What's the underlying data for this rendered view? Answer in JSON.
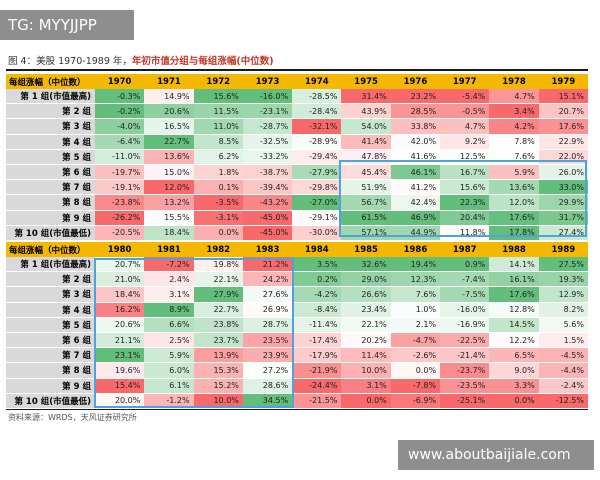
{
  "watermark_top": "TG: MYYJJPP",
  "figure_label": "图 4：美股 1970-1989 年，",
  "figure_title": "年初市值分组与每组涨幅(中位数)",
  "header_label": "每组涨幅（中位数）",
  "group_labels": [
    "第 1 组(市值最高)",
    "第 2 组",
    "第 3 组",
    "第 4 组",
    "第 5 组",
    "第 6 组",
    "第 7 组",
    "第 8 组",
    "第 9 组",
    "第 10 组(市值最低)"
  ],
  "table1": {
    "years": [
      "1970",
      "1971",
      "1972",
      "1973",
      "1974",
      "1975",
      "1976",
      "1977",
      "1978",
      "1979"
    ],
    "rows": [
      [
        "-0.3%",
        "14.9%",
        "15.6%",
        "-16.0%",
        "-28.5%",
        "31.4%",
        "23.2%",
        "-5.4%",
        "4.7%",
        "15.1%"
      ],
      [
        "-0.2%",
        "20.6%",
        "11.5%",
        "-23.1%",
        "-28.4%",
        "43.9%",
        "28.5%",
        "-0.5%",
        "3.4%",
        "20.7%"
      ],
      [
        "-4.0%",
        "16.5%",
        "11.0%",
        "-28.7%",
        "-32.1%",
        "54.0%",
        "33.8%",
        "4.7%",
        "4.2%",
        "17.6%"
      ],
      [
        "-6.4%",
        "22.7%",
        "8.5%",
        "-32.5%",
        "-28.9%",
        "41.4%",
        "42.0%",
        "9.2%",
        "7.8%",
        "22.9%"
      ],
      [
        "-11.0%",
        "13.6%",
        "6.2%",
        "-33.2%",
        "-29.4%",
        "47.8%",
        "41.6%",
        "12.5%",
        "7.6%",
        "22.0%"
      ],
      [
        "-19.7%",
        "15.0%",
        "1.8%",
        "-38.7%",
        "-27.9%",
        "45.4%",
        "46.1%",
        "16.7%",
        "5.9%",
        "26.0%"
      ],
      [
        "-19.1%",
        "12.0%",
        "0.1%",
        "-39.4%",
        "-29.8%",
        "51.9%",
        "41.2%",
        "15.6%",
        "13.6%",
        "33.0%"
      ],
      [
        "-23.8%",
        "13.2%",
        "-3.5%",
        "-43.2%",
        "-27.0%",
        "56.7%",
        "42.4%",
        "22.3%",
        "12.0%",
        "29.9%"
      ],
      [
        "-26.2%",
        "15.5%",
        "-3.1%",
        "-45.0%",
        "-29.1%",
        "61.5%",
        "46.9%",
        "20.4%",
        "17.6%",
        "31.7%"
      ],
      [
        "-20.5%",
        "18.4%",
        "0.0%",
        "-45.0%",
        "-30.0%",
        "57.1%",
        "44.9%",
        "11.8%",
        "17.8%",
        "27.4%"
      ]
    ]
  },
  "table2": {
    "years": [
      "1980",
      "1981",
      "1982",
      "1983",
      "1984",
      "1985",
      "1986",
      "1987",
      "1988",
      "1989"
    ],
    "rows": [
      [
        "20.7%",
        "-7.2%",
        "19.8%",
        "21.2%",
        "3.5%",
        "32.6%",
        "19.4%",
        "0.9%",
        "14.1%",
        "27.5%"
      ],
      [
        "21.0%",
        "2.4%",
        "22.1%",
        "24.2%",
        "0.2%",
        "29.0%",
        "12.3%",
        "-7.4%",
        "16.1%",
        "19.3%"
      ],
      [
        "18.4%",
        "3.1%",
        "27.9%",
        "27.6%",
        "-4.2%",
        "26.6%",
        "7.6%",
        "-7.5%",
        "17.6%",
        "12.9%"
      ],
      [
        "16.2%",
        "8.9%",
        "22.7%",
        "26.9%",
        "-8.4%",
        "23.4%",
        "1.0%",
        "-16.0%",
        "12.8%",
        "8.2%"
      ],
      [
        "20.6%",
        "6.6%",
        "23.8%",
        "28.7%",
        "-11.4%",
        "22.1%",
        "2.1%",
        "-16.9%",
        "14.5%",
        "5.6%"
      ],
      [
        "21.1%",
        "2.5%",
        "23.7%",
        "23.5%",
        "-17.4%",
        "20.2%",
        "-4.7%",
        "-22.5%",
        "12.2%",
        "1.5%"
      ],
      [
        "23.1%",
        "5.9%",
        "13.9%",
        "23.9%",
        "-17.9%",
        "11.4%",
        "-2.6%",
        "-21.4%",
        "6.5%",
        "-4.5%"
      ],
      [
        "19.6%",
        "6.0%",
        "15.3%",
        "27.2%",
        "-21.9%",
        "10.0%",
        "0.0%",
        "-23.7%",
        "9.0%",
        "-4.4%"
      ],
      [
        "15.4%",
        "6.1%",
        "15.2%",
        "28.6%",
        "-24.4%",
        "3.1%",
        "-7.8%",
        "-23.5%",
        "3.3%",
        "-2.4%"
      ],
      [
        "20.0%",
        "-1.2%",
        "10.0%",
        "34.5%",
        "-21.5%",
        "0.0%",
        "-6.9%",
        "-25.1%",
        "0.0%",
        "-12.5%"
      ]
    ]
  },
  "source_note": "资料来源：WRDS，天风证券研究所",
  "watermark_bottom": "www.aboutbaijiale.com",
  "colors": {
    "header": "#f5b800",
    "label": "#d9d9d9",
    "positive": "#63be7b",
    "negative": "#f8696b",
    "box": "#4ea3dc"
  }
}
